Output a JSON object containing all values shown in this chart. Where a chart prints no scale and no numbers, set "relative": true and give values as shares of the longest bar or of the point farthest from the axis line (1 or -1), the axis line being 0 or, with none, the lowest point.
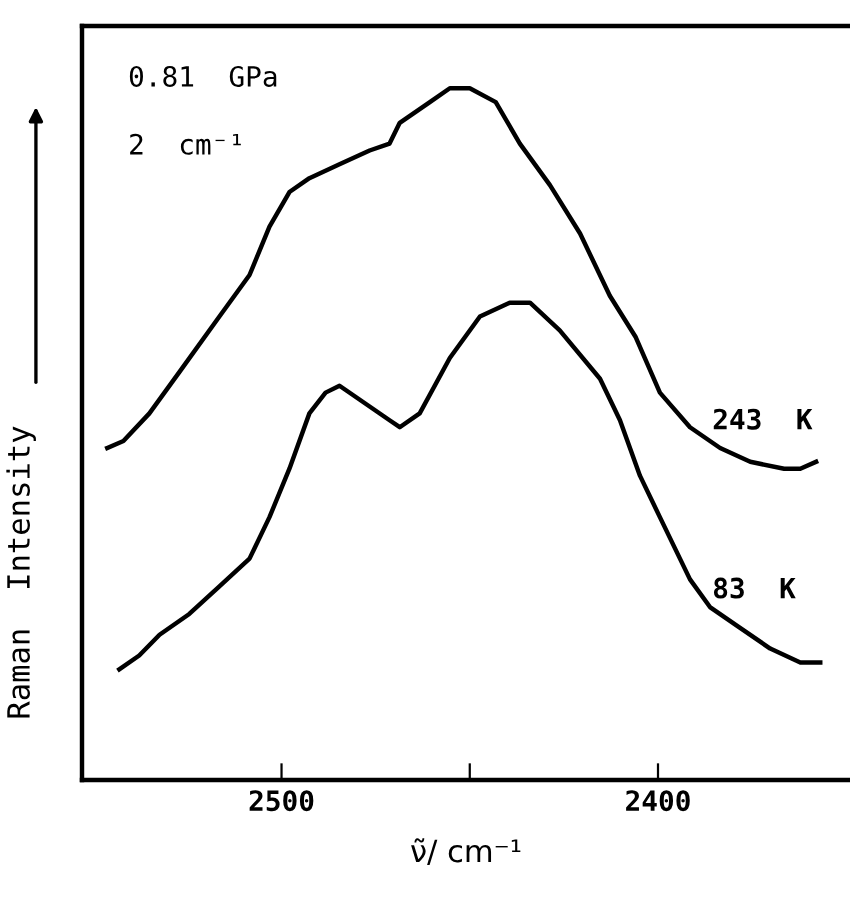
{
  "chart_data": {
    "type": "line",
    "relative": true,
    "xlabel": "ν̃/ cm⁻¹",
    "ylabel": "Raman  Intensity",
    "xlim": [
      2553,
      2349
    ],
    "xticks": [
      2500,
      {
        "value": 2450,
        "label": null
      },
      2400
    ],
    "tick_labels": "x",
    "grid": false,
    "legend": false,
    "marker": "none",
    "line_style": "solid",
    "annotations": [
      "0.81  GPa",
      "2  cm⁻¹"
    ],
    "series": [
      {
        "name": "243  K",
        "color": "#000000",
        "x": [
          2546.3,
          2542.0,
          2535.1,
          2527.1,
          2516.5,
          2508.5,
          2503.2,
          2497.9,
          2492.6,
          2484.6,
          2476.6,
          2471.3,
          2468.6,
          2460.6,
          2455.3,
          2450.0,
          2443.1,
          2436.7,
          2428.7,
          2420.7,
          2412.8,
          2405.9,
          2399.5,
          2391.5,
          2383.5,
          2375.5,
          2366.5,
          2362.2,
          2358.0
        ],
        "values": [
          0.48,
          0.49,
          0.53,
          0.59,
          0.67,
          0.73,
          0.8,
          0.85,
          0.87,
          0.89,
          0.91,
          0.92,
          0.95,
          0.98,
          1.0,
          1.0,
          0.98,
          0.92,
          0.86,
          0.79,
          0.7,
          0.64,
          0.56,
          0.51,
          0.48,
          0.46,
          0.45,
          0.45,
          0.46
        ]
      },
      {
        "name": "83  K",
        "color": "#000000",
        "x": [
          2543.1,
          2537.8,
          2532.4,
          2524.5,
          2516.5,
          2508.5,
          2503.2,
          2497.9,
          2492.6,
          2488.3,
          2484.6,
          2479.3,
          2471.3,
          2468.6,
          2463.3,
          2455.3,
          2447.3,
          2439.4,
          2434.0,
          2426.1,
          2415.4,
          2410.1,
          2404.8,
          2399.5,
          2391.5,
          2386.2,
          2378.2,
          2370.2,
          2362.2,
          2356.9
        ],
        "values": [
          0.16,
          0.18,
          0.21,
          0.24,
          0.28,
          0.32,
          0.38,
          0.45,
          0.53,
          0.56,
          0.57,
          0.55,
          0.52,
          0.51,
          0.53,
          0.61,
          0.67,
          0.69,
          0.69,
          0.65,
          0.58,
          0.52,
          0.44,
          0.38,
          0.29,
          0.25,
          0.22,
          0.19,
          0.17,
          0.17
        ]
      }
    ]
  }
}
